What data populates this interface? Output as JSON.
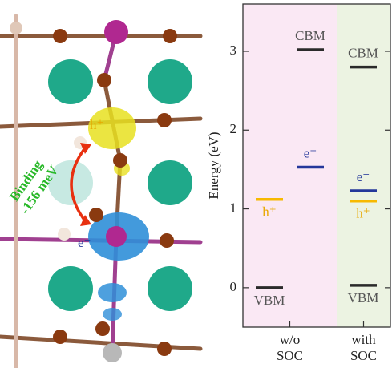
{
  "structure": {
    "hole_label": "h⁺",
    "electron_label": "e⁻",
    "binding_label": [
      "Binding",
      "-156 meV"
    ]
  },
  "chart_data": {
    "type": "energy-levels",
    "ylabel": "Energy (eV)",
    "ylim": [
      -0.5,
      3.6
    ],
    "yticks": [
      0,
      1,
      2,
      3
    ],
    "categories": [
      [
        "w/o",
        "SOC"
      ],
      [
        "with",
        "SOC"
      ]
    ],
    "region_colors": [
      "#fae8f4",
      "#ecf3e2"
    ],
    "series": [
      {
        "name": "VBM",
        "color": "#2a2a2a",
        "label_color": "#555555",
        "label_position": "below",
        "values": [
          0,
          0.03
        ]
      },
      {
        "name": "h⁺",
        "color": "#f7b900",
        "label_color": "#e8a800",
        "label_position": "below",
        "values": [
          1.12,
          1.1
        ]
      },
      {
        "name": "e⁻",
        "color": "#24379a",
        "label_color": "#24379a",
        "label_position": "above",
        "values": [
          1.53,
          1.23
        ]
      },
      {
        "name": "CBM",
        "color": "#2a2a2a",
        "label_color": "#555555",
        "label_position": "above",
        "values": [
          3.02,
          2.8
        ]
      }
    ]
  }
}
